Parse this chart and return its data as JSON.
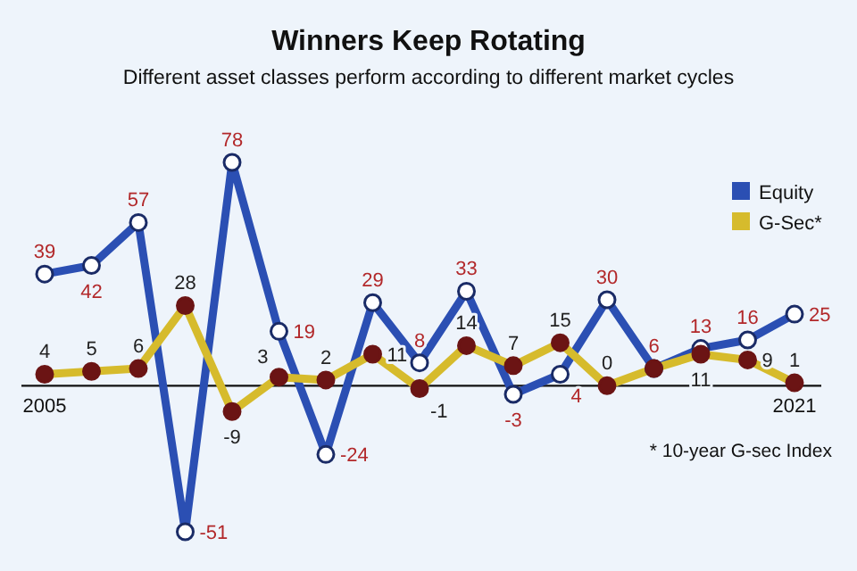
{
  "chart_data": {
    "type": "line",
    "title": "Winners Keep Rotating",
    "subtitle": "Different asset classes perform according to different market cycles",
    "categories": [
      "2005",
      null,
      null,
      null,
      null,
      null,
      null,
      null,
      null,
      null,
      null,
      null,
      null,
      null,
      null,
      null,
      "2021"
    ],
    "series": [
      {
        "name": "Equity",
        "color": "#2b4fb3",
        "values": [
          39,
          42,
          57,
          -51,
          78,
          19,
          -24,
          29,
          8,
          33,
          -3,
          4,
          30,
          6,
          13,
          16,
          25
        ],
        "value_labels": [
          "39",
          "42",
          "57",
          "-51",
          "78",
          "19",
          "-24",
          "29",
          "8",
          "33",
          "-3",
          "4",
          "30",
          "6",
          "13",
          "16",
          "25"
        ]
      },
      {
        "name": "G-Sec*",
        "color": "#d6bb2c",
        "values": [
          4,
          5,
          6,
          28,
          -9,
          3,
          2,
          11,
          -1,
          14,
          7,
          15,
          0,
          6,
          11,
          9,
          1
        ],
        "value_labels": [
          "4",
          "5",
          "6",
          "28",
          "-9",
          "3",
          "2",
          "11",
          "-1",
          "14",
          "7",
          "15",
          "0",
          null,
          "11",
          "9",
          "1"
        ]
      }
    ],
    "marker": "circle",
    "legend": "top right",
    "grid": false,
    "annotations": [
      "* 10-year G-sec Index"
    ]
  }
}
